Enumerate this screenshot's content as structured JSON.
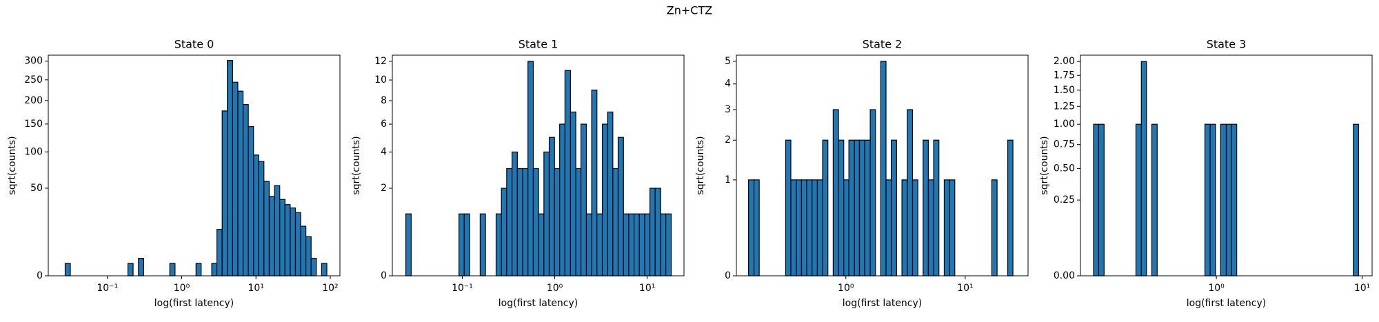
{
  "title": "Zn+CTZ",
  "chart_data": [
    {
      "type": "histogram",
      "title": "State 0",
      "xlabel": "log(first latency)",
      "ylabel": "sqrt(counts)",
      "xscale": "log",
      "yscale": "sqrt",
      "color": "#1f77b4",
      "edgecolor": "#000000",
      "xlim": [
        0.016,
        135
      ],
      "ylim": [
        0,
        317
      ],
      "xticks": [
        {
          "value": 0.1,
          "label": "10⁻¹"
        },
        {
          "value": 1,
          "label": "10⁰"
        },
        {
          "value": 10,
          "label": "10¹"
        },
        {
          "value": 100,
          "label": "10²"
        }
      ],
      "yticks": [
        0,
        50,
        100,
        150,
        200,
        250,
        300
      ],
      "bins": [
        0.027,
        0.0317,
        0.0373,
        0.0439,
        0.0516,
        0.0607,
        0.0714,
        0.084,
        0.0988,
        0.116,
        0.137,
        0.161,
        0.189,
        0.222,
        0.262,
        0.308,
        0.362,
        0.425,
        0.5,
        0.588,
        0.692,
        0.814,
        0.957,
        1.13,
        1.32,
        1.56,
        1.83,
        2.15,
        2.54,
        2.98,
        3.51,
        4.12,
        4.85,
        5.7,
        6.71,
        7.89,
        9.28,
        10.9,
        12.8,
        15.1,
        17.8,
        20.9,
        24.6,
        28.9,
        34.0,
        40.0,
        47.0,
        55.3,
        65.0,
        76.5,
        90.0
      ],
      "values": [
        1,
        0,
        0,
        0,
        0,
        0,
        0,
        0,
        0,
        0,
        0,
        0,
        1,
        0,
        2,
        0,
        0,
        0,
        0,
        0,
        1,
        0,
        0,
        0,
        0,
        1,
        0,
        0,
        1,
        14,
        177,
        302,
        244,
        222,
        191,
        145,
        95,
        85,
        58,
        41,
        53,
        38,
        33,
        30,
        26,
        16,
        10,
        2,
        0,
        1
      ]
    },
    {
      "type": "histogram",
      "title": "State 1",
      "xlabel": "log(first latency)",
      "ylabel": "sqrt(counts)",
      "xscale": "log",
      "yscale": "sqrt",
      "color": "#1f77b4",
      "edgecolor": "#000000",
      "xlim": [
        0.0175,
        25
      ],
      "ylim": [
        0,
        12.7
      ],
      "xticks": [
        {
          "value": 0.1,
          "label": "10⁻¹"
        },
        {
          "value": 1,
          "label": "10⁰"
        },
        {
          "value": 10,
          "label": "10¹"
        }
      ],
      "yticks": [
        0,
        2,
        4,
        6,
        8,
        10,
        12
      ],
      "bins": [
        0.0245,
        0.028,
        0.032,
        0.0365,
        0.0417,
        0.0475,
        0.0543,
        0.0619,
        0.0707,
        0.0807,
        0.092,
        0.105,
        0.12,
        0.137,
        0.156,
        0.178,
        0.203,
        0.232,
        0.265,
        0.302,
        0.345,
        0.394,
        0.45,
        0.513,
        0.586,
        0.668,
        0.763,
        0.871,
        0.994,
        1.13,
        1.29,
        1.48,
        1.69,
        1.92,
        2.2,
        2.51,
        2.86,
        3.27,
        3.73,
        4.25,
        4.85,
        5.54,
        6.32,
        7.21,
        8.23,
        9.4,
        10.7,
        12.2,
        14.0,
        15.9,
        18.2
      ],
      "values": [
        1,
        0,
        0,
        0,
        0,
        0,
        0,
        0,
        0,
        0,
        1,
        1,
        0,
        0,
        1,
        0,
        0,
        1,
        2,
        3,
        4,
        3,
        3,
        12,
        3,
        1,
        4,
        5,
        3,
        6,
        11,
        7,
        3,
        6,
        1,
        9,
        1,
        6,
        7,
        3,
        5,
        1,
        1,
        1,
        1,
        1,
        2,
        2,
        1,
        1
      ]
    },
    {
      "type": "histogram",
      "title": "State 2",
      "xlabel": "log(first latency)",
      "ylabel": "sqrt(counts)",
      "xscale": "log",
      "yscale": "sqrt",
      "color": "#1f77b4",
      "edgecolor": "#000000",
      "xlim": [
        0.121,
        33.6
      ],
      "ylim": [
        0,
        5.29
      ],
      "xticks": [
        {
          "value": 1,
          "label": "10⁰"
        },
        {
          "value": 10,
          "label": "10¹"
        }
      ],
      "yticks": [
        0,
        1,
        2,
        3,
        4,
        5
      ],
      "bins": [
        0.153,
        0.17,
        0.188,
        0.208,
        0.23,
        0.255,
        0.282,
        0.313,
        0.346,
        0.384,
        0.425,
        0.47,
        0.521,
        0.577,
        0.639,
        0.707,
        0.783,
        0.867,
        0.96,
        1.06,
        1.18,
        1.3,
        1.44,
        1.6,
        1.77,
        1.96,
        2.17,
        2.4,
        2.66,
        2.95,
        3.27,
        3.62,
        4.01,
        4.44,
        4.91,
        5.44,
        6.02,
        6.67,
        7.39,
        8.18,
        9.06,
        10.0,
        11.1,
        12.3,
        13.6,
        15.1,
        16.7,
        18.5,
        20.5,
        22.7,
        25.1
      ],
      "values": [
        1,
        1,
        0,
        0,
        0,
        0,
        0,
        2,
        1,
        1,
        1,
        1,
        1,
        1,
        2,
        0,
        3,
        2,
        1,
        2,
        2,
        2,
        2,
        3,
        0,
        5,
        1,
        2,
        0,
        1,
        3,
        1,
        0,
        2,
        1,
        2,
        0,
        1,
        1,
        0,
        0,
        0,
        0,
        0,
        0,
        0,
        1,
        0,
        0,
        2
      ]
    },
    {
      "type": "histogram",
      "title": "State 3",
      "xlabel": "log(first latency)",
      "ylabel": "sqrt(counts)",
      "xscale": "log",
      "yscale": "sqrt",
      "color": "#1f77b4",
      "edgecolor": "#000000",
      "xlim": [
        0.117,
        11.7
      ],
      "ylim": [
        0,
        2.12
      ],
      "xticks": [
        {
          "value": 1,
          "label": "10⁰"
        },
        {
          "value": 10,
          "label": "10¹"
        }
      ],
      "yticks": [
        {
          "value": 0,
          "label": "0.00"
        },
        {
          "value": 0.25,
          "label": "0.25"
        },
        {
          "value": 0.5,
          "label": "0.50"
        },
        {
          "value": 0.75,
          "label": "0.75"
        },
        {
          "value": 1,
          "label": "1.00"
        },
        {
          "value": 1.25,
          "label": "1.25"
        },
        {
          "value": 1.5,
          "label": "1.50"
        },
        {
          "value": 1.75,
          "label": "1.75"
        },
        {
          "value": 2,
          "label": "2.00"
        }
      ],
      "bins": [
        0.144,
        0.156,
        0.17,
        0.185,
        0.201,
        0.219,
        0.238,
        0.259,
        0.281,
        0.306,
        0.332,
        0.361,
        0.393,
        0.427,
        0.465,
        0.505,
        0.549,
        0.597,
        0.649,
        0.706,
        0.768,
        0.835,
        0.908,
        0.987,
        1.07,
        1.17,
        1.27,
        1.38,
        1.5,
        1.63,
        1.77,
        1.93,
        2.1,
        2.28,
        2.48,
        2.7,
        2.93,
        3.19,
        3.46,
        3.77,
        4.1,
        4.45,
        4.84,
        5.27,
        5.73,
        6.23,
        6.77,
        7.36,
        8.01,
        8.7,
        9.46
      ],
      "values": [
        1,
        1,
        0,
        0,
        0,
        0,
        0,
        0,
        1,
        2,
        0,
        1,
        0,
        0,
        0,
        0,
        0,
        0,
        0,
        0,
        0,
        1,
        1,
        0,
        1,
        1,
        1,
        0,
        0,
        0,
        0,
        0,
        0,
        0,
        0,
        0,
        0,
        0,
        0,
        0,
        0,
        0,
        0,
        0,
        0,
        0,
        0,
        0,
        0,
        1
      ]
    }
  ]
}
